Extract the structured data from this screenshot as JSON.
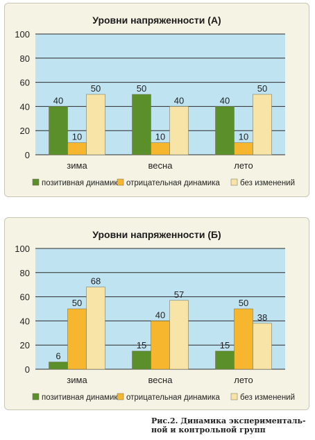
{
  "colors": {
    "plot_bg": "#bfe3f1",
    "positive": "#5a8f29",
    "negative": "#f6b72f",
    "nochange": "#f8e4a6",
    "grid": "#2b2b2b"
  },
  "chart_data": [
    {
      "type": "bar",
      "title": "Уровни напряженности (А)",
      "categories": [
        "зима",
        "весна",
        "лето"
      ],
      "series": [
        {
          "name": "позитивная динамика",
          "values": [
            40,
            50,
            40
          ]
        },
        {
          "name": "отрицательная динамика",
          "values": [
            10,
            10,
            10
          ]
        },
        {
          "name": "без изменений",
          "values": [
            50,
            40,
            50
          ]
        }
      ],
      "yticks": [
        0,
        20,
        40,
        60,
        80,
        100
      ],
      "ylim": [
        0,
        100
      ],
      "grid": true,
      "legend": "bottom"
    },
    {
      "type": "bar",
      "title": "Уровни напряженности (Б)",
      "categories": [
        "зима",
        "весна",
        "лето"
      ],
      "series": [
        {
          "name": "позитивная динамика",
          "values": [
            6,
            15,
            15
          ]
        },
        {
          "name": "отрицательная динамика",
          "values": [
            50,
            40,
            50
          ]
        },
        {
          "name": "без изменений",
          "values": [
            68,
            57,
            38
          ]
        }
      ],
      "yticks": [
        0,
        20,
        40,
        60,
        80,
        100
      ],
      "ylim": [
        0,
        100
      ],
      "grid": true,
      "legend": "bottom"
    }
  ],
  "caption": {
    "line1": "Рис.2. Динамика эксперименталь-",
    "line2": "ной и контрольной групп"
  }
}
